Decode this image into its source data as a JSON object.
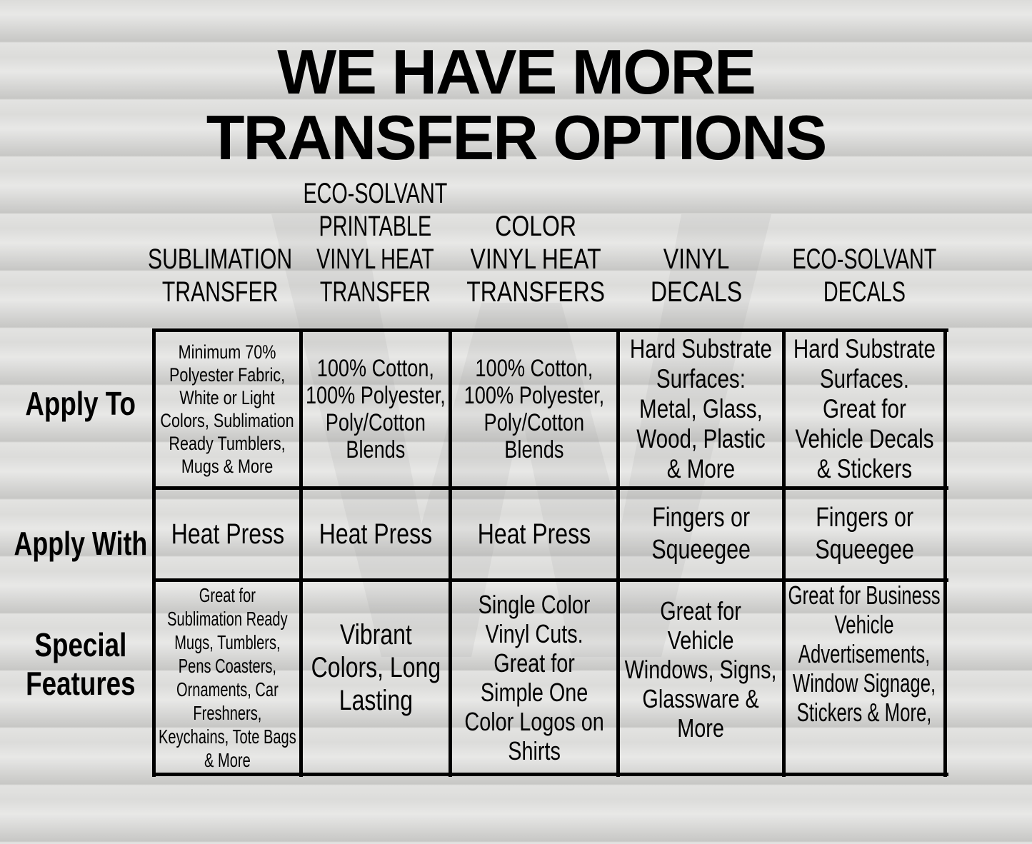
{
  "title": "WE HAVE MORE\nTRANSFER OPTIONS",
  "watermark": "WW",
  "columns": [
    "SUBLIMATION\nTRANSFER",
    "ECO-SOLVANT\nPRINTABLE\nVINYL HEAT\nTRANSFER",
    "COLOR\nVINYL HEAT\nTRANSFERS",
    "VINYL\nDECALS",
    "ECO-SOLVANT\nDECALS"
  ],
  "rows": [
    {
      "label": "Apply To",
      "cells": [
        "Minimum 70%\nPolyester Fabric,\nWhite or Light\nColors, Sublimation\nReady Tumblers,\nMugs & More",
        "100% Cotton,\n100% Polyester,\nPoly/Cotton\nBlends",
        "100% Cotton,\n100% Polyester,\nPoly/Cotton\nBlends",
        "Hard Substrate\nSurfaces:\nMetal, Glass,\nWood, Plastic\n& More",
        "Hard Substrate\nSurfaces.\nGreat for\nVehicle Decals\n& Stickers"
      ]
    },
    {
      "label": "Apply With",
      "cells": [
        "Heat Press",
        "Heat Press",
        "Heat Press",
        "Fingers or\nSqueegee",
        "Fingers or\nSqueegee"
      ]
    },
    {
      "label": "Special\nFeatures",
      "cells": [
        "Great for\nSublimation Ready\nMugs, Tumblers,\nPens Coasters,\nOrnaments, Car\nFreshners,\nKeychains, Tote Bags\n& More",
        "Vibrant\nColors, Long\nLasting",
        "Single Color\nVinyl Cuts.\nGreat for\nSimple One\nColor Logos on\nShirts",
        "Great for\nVehicle\nWindows, Signs,\nGlassware &\nMore",
        "Great for Business\nVehicle\nAdvertisements,\nWindow Signage,\nStickers & More,"
      ]
    }
  ]
}
